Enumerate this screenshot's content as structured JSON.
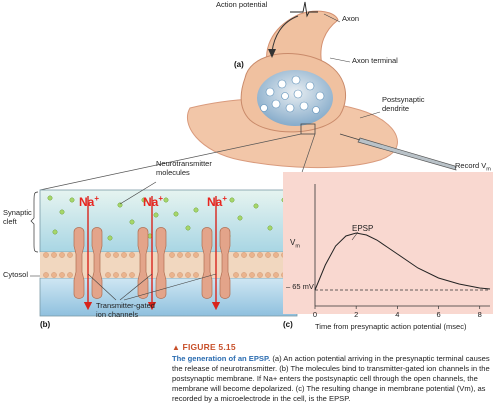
{
  "labels": {
    "action_potential": "Action potential",
    "axon": "Axon",
    "axon_terminal": "Axon terminal",
    "postsynaptic_dendrite": "Postsynaptic\ndendrite",
    "record_vm": "Record V",
    "record_vm_sub": "m",
    "neurotransmitter_molecules": "Neurotransmitter\nmolecules",
    "synaptic_cleft": "Synaptic\ncleft",
    "cytosol": "Cytosol",
    "transmitter_gated": "Transmitter-gated\nion channels",
    "na_ion": "Na",
    "na_plus": "+",
    "panel_a": "(a)",
    "panel_b": "(b)",
    "panel_c": "(c)"
  },
  "chart_data": {
    "type": "line",
    "title": "",
    "series_label": "EPSP",
    "ylabel": "V",
    "ylabel_sub": "m",
    "baseline_label": "– 65 mV",
    "xlabel": "Time from presynaptic action potential (msec)",
    "x_ticks": [
      "0",
      "2",
      "4",
      "6",
      "8"
    ],
    "xlim": [
      0,
      8.5
    ],
    "ylim": [
      -66,
      -55
    ],
    "baseline_mv": -65,
    "x": [
      0,
      0.5,
      1,
      1.5,
      2,
      2.5,
      3,
      3.5,
      4,
      5,
      6,
      7,
      8,
      8.5
    ],
    "y": [
      -65,
      -62.5,
      -60.6,
      -59.6,
      -59.3,
      -59.5,
      -60.0,
      -60.7,
      -61.4,
      -62.8,
      -63.8,
      -64.4,
      -64.8,
      -64.9
    ]
  },
  "caption": {
    "figure_number": "FIGURE 5.15",
    "title": "The generation of an EPSP.",
    "text": "(a) An action potential arriving in the presynaptic terminal causes the release of neurotransmitter. (b) The molecules bind to transmitter-gated ion channels in the postsynaptic membrane. If Na+ enters the postsynaptic cell through the open channels, the membrane will become depolarized. (c) The resulting change in membrane potential (Vm), as recorded by a microelectrode in the cell, is the EPSP."
  },
  "colors": {
    "tissue": "#f2c6a8",
    "tissue_dark": "#d98a6a",
    "cleft": "#bfe1e6",
    "cytosol": "#9fc9e2",
    "channel": "#e3a48a",
    "na_text": "#e8251f",
    "arrow": "#d8241c",
    "graph_bg": "#f9d8d0",
    "molecule": "#a6d66a",
    "caption_head": "#c8502a",
    "caption_title": "#2b6cb0"
  }
}
